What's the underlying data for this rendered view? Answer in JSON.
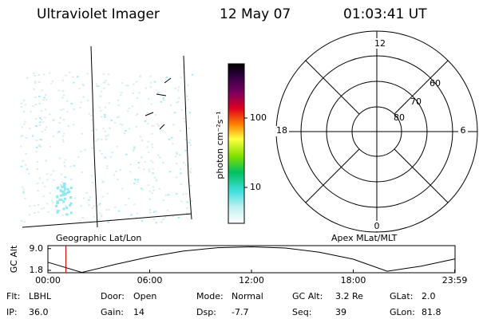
{
  "header": {
    "title": "Ultraviolet Imager",
    "date": "12 May 07",
    "time": "01:03:41 UT"
  },
  "map": {
    "label": "Geographic Lat/Lon"
  },
  "colorbar": {
    "label": "photon cm⁻²s⁻¹",
    "ticks": [
      "100",
      "10"
    ]
  },
  "polar": {
    "label": "Apex MLat/MLT",
    "hours": [
      "12",
      "18",
      "6",
      "0"
    ],
    "latitudes": [
      "60",
      "70",
      "80"
    ]
  },
  "altitude_plot": {
    "ylabel": "GC Alt",
    "yticks": [
      {
        "value": 9,
        "label": "9.0"
      },
      1.8
    ],
    "ylim": [
      1,
      10
    ],
    "xlim": [
      0,
      24
    ],
    "xticks": [
      {
        "value": 0,
        "label": "00:00"
      },
      {
        "value": 6,
        "label": "06:00"
      },
      {
        "value": 12,
        "label": "12:00"
      },
      {
        "value": 18,
        "label": "18:00"
      },
      {
        "value": 23.98,
        "label": "23:59"
      }
    ],
    "hours": [
      0,
      2,
      4,
      6,
      8,
      10,
      12,
      14,
      16,
      18,
      20,
      22,
      24
    ],
    "values": [
      4.5,
      1.1,
      3.8,
      6.3,
      8.2,
      9.3,
      9.6,
      9.2,
      7.8,
      5.5,
      1.5,
      3.2,
      5.6
    ],
    "time_marker": 1.06
  },
  "info": [
    [
      {
        "label": "Flt:",
        "value": "LBHL"
      },
      {
        "label": "Door:",
        "value": "Open"
      },
      {
        "label": "Mode:",
        "value": "Normal"
      },
      {
        "label": "GC Alt:",
        "value": "3.2 Re"
      },
      {
        "label": "GLat:",
        "value": "2.0"
      }
    ],
    [
      {
        "label": "IP:",
        "value": "36.0"
      },
      {
        "label": "Gain:",
        "value": "14"
      },
      {
        "label": "Dsp:",
        "value": "-7.7"
      },
      {
        "label": "Seq:",
        "value": "39"
      },
      {
        "label": "GLon:",
        "value": "81.8"
      }
    ]
  ]
}
